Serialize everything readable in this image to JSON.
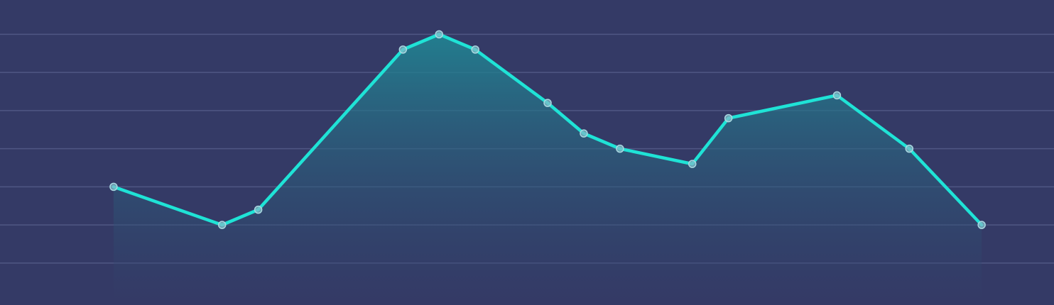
{
  "colors": {
    "background": "#343a66",
    "line": "#1fe3d6",
    "area_top": "#1f8a96",
    "area_bottom": "#343a66",
    "grid": "#4f5784",
    "marker_fill": "#7fbcc8",
    "marker_stroke": "#a8d8e0"
  },
  "chart_data": {
    "type": "area",
    "title": "",
    "xlabel": "",
    "ylabel": "",
    "grid": true,
    "grid_axis": "y",
    "legend": "none",
    "xlim": [
      -3.14,
      26
    ],
    "ylim": [
      -0.1,
      7.9
    ],
    "y_grid_values": [
      1,
      2,
      3,
      4,
      5,
      6,
      7
    ],
    "x": [
      0,
      3,
      4,
      8,
      9,
      10,
      12,
      13,
      14,
      16,
      17,
      20,
      22,
      24
    ],
    "series": [
      {
        "values": [
          3,
          2,
          2.4,
          6.6,
          7,
          6.6,
          5.2,
          4.4,
          4,
          3.6,
          4.8,
          5.4,
          4,
          2
        ]
      }
    ]
  }
}
